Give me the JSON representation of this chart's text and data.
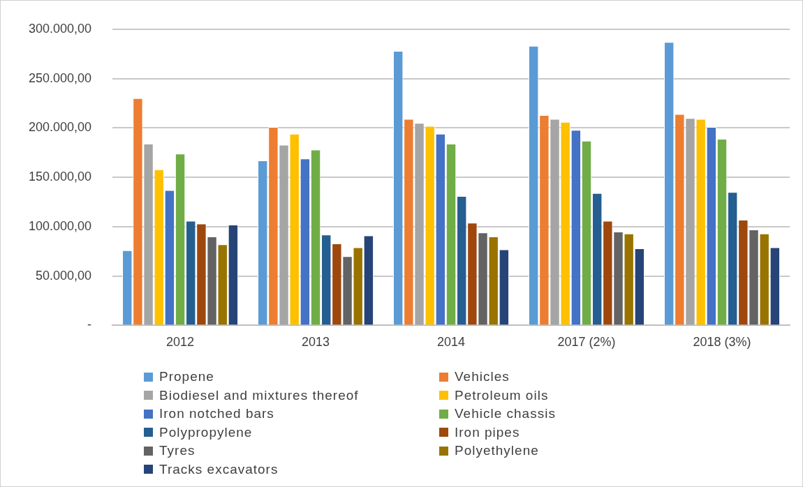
{
  "chart_data": {
    "type": "bar",
    "categories": [
      "2012",
      "2013",
      "2014",
      "2017 (2%)",
      "2018 (3%)"
    ],
    "series": [
      {
        "name": "Propene",
        "color": "#5b9bd5",
        "values": [
          76000,
          167000,
          278000,
          283000,
          287000
        ]
      },
      {
        "name": "Vehicles",
        "color": "#ed7d31",
        "values": [
          230000,
          201000,
          209000,
          213000,
          214000
        ]
      },
      {
        "name": "Biodiesel and mixtures thereof",
        "color": "#a5a5a5",
        "values": [
          184000,
          183000,
          205000,
          209000,
          210000
        ]
      },
      {
        "name": "Petroleum oils",
        "color": "#ffc000",
        "values": [
          158000,
          194000,
          202000,
          206000,
          209000
        ]
      },
      {
        "name": "Iron notched bars",
        "color": "#4472c4",
        "values": [
          137000,
          169000,
          194000,
          198000,
          201000
        ]
      },
      {
        "name": "Vehicle chassis",
        "color": "#70ad47",
        "values": [
          174000,
          178000,
          184000,
          187000,
          189000
        ]
      },
      {
        "name": "Polypropylene",
        "color": "#255e91",
        "values": [
          106000,
          92000,
          131000,
          134000,
          135000
        ]
      },
      {
        "name": "Iron pipes",
        "color": "#9e480e",
        "values": [
          103000,
          83000,
          104000,
          106000,
          107000
        ]
      },
      {
        "name": "Tyres",
        "color": "#636363",
        "values": [
          90000,
          70000,
          94000,
          95000,
          97000
        ]
      },
      {
        "name": "Polyethylene",
        "color": "#997300",
        "values": [
          82000,
          79000,
          90000,
          93000,
          93000
        ]
      },
      {
        "name": "Tracks excavators",
        "color": "#264478",
        "values": [
          102000,
          91000,
          77000,
          78000,
          79000
        ]
      }
    ],
    "ylim": [
      0,
      300000
    ],
    "yticks": [
      {
        "value": 0,
        "label": "-"
      },
      {
        "value": 50000,
        "label": "50.000,00"
      },
      {
        "value": 100000,
        "label": "100.000,00"
      },
      {
        "value": 150000,
        "label": "150.000,00"
      },
      {
        "value": 200000,
        "label": "200.000,00"
      },
      {
        "value": 250000,
        "label": "250.000,00"
      },
      {
        "value": 300000,
        "label": "300.000,00"
      }
    ],
    "grid": "y",
    "legend": "bottom"
  }
}
